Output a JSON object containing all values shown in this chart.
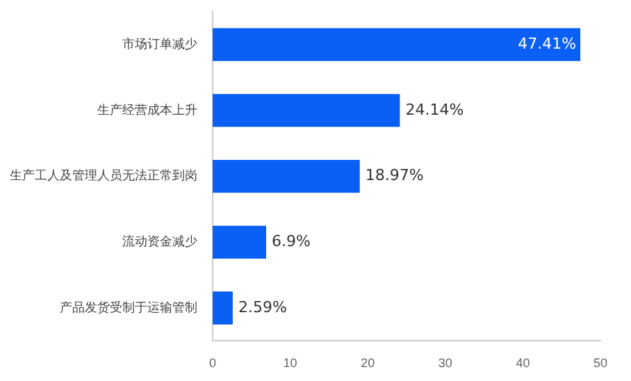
{
  "chart_data": {
    "type": "bar",
    "orientation": "horizontal",
    "categories": [
      "市场订单减少",
      "生产经营成本上升",
      "生产工人及管理人员无法正常到岗",
      "流动资金减少",
      "产品发货受制于运输管制"
    ],
    "values": [
      47.41,
      24.14,
      18.97,
      6.9,
      2.59
    ],
    "value_labels": [
      "47.41%",
      "24.14%",
      "18.97%",
      "6.9%",
      "2.59%"
    ],
    "color": "#0a5ff5",
    "xlim": [
      0,
      50
    ],
    "xticks": [
      0,
      10,
      20,
      30,
      40,
      50
    ],
    "grid": false,
    "legend": false
  }
}
